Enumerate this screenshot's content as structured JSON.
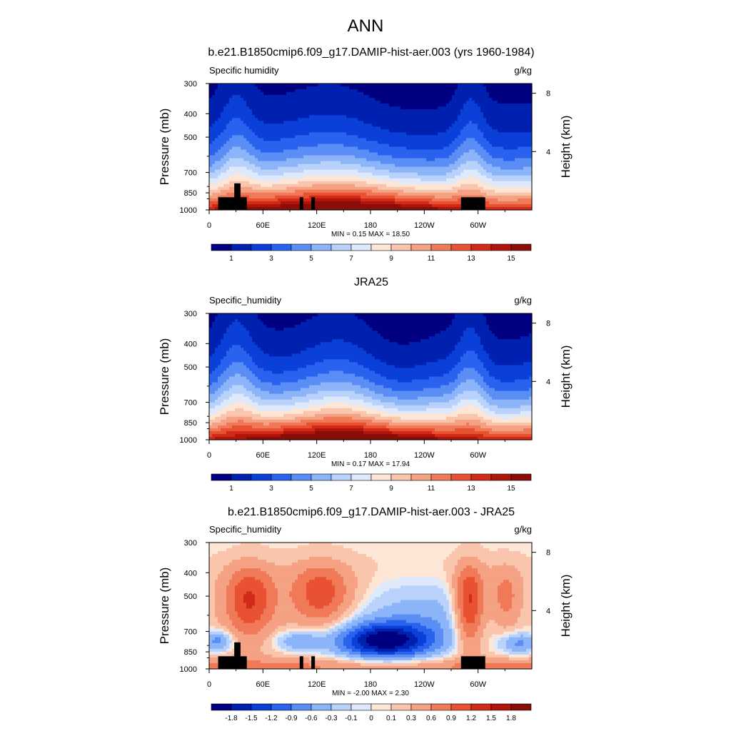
{
  "figure": {
    "title": "ANN"
  },
  "colors": {
    "abs_levels": [
      "#000080",
      "#0020b0",
      "#0a3fd8",
      "#2a62f0",
      "#5a8ef5",
      "#8cb4f8",
      "#b8d2fb",
      "#dfe9fc",
      "#fde6d6",
      "#f9c6ad",
      "#f5a183",
      "#f07a58",
      "#e85233",
      "#d22a18",
      "#b0150c",
      "#8a0d08"
    ],
    "diff_levels": [
      "#000080",
      "#0020b0",
      "#0a3fd8",
      "#2a62f0",
      "#5a8ef5",
      "#8cb4f8",
      "#b8d2fb",
      "#dfe9fc",
      "#fde6d6",
      "#f9c6ad",
      "#f5a183",
      "#f07a58",
      "#e85233",
      "#d22a18",
      "#b0150c",
      "#8a0d08"
    ],
    "land_mask": "#000000"
  },
  "chart_data": [
    {
      "type": "heatmap",
      "title": "b.e21.B1850cmip6.f09_g17.DAMIP-hist-aer.003 (yrs 1960-1984)",
      "variable": "Specific humidity",
      "units": "g/kg",
      "ylabel": "Pressure (mb)",
      "ylabel_right": "Height (km)",
      "x_ticks": [
        "0",
        "60E",
        "120E",
        "180",
        "120W",
        "60W"
      ],
      "y_ticks": [
        "300",
        "400",
        "500",
        "700",
        "850",
        "1000"
      ],
      "y_ticks_right": [
        "8",
        "4"
      ],
      "stats": "MIN =   0.15  MAX =  18.50",
      "colorbar_labels": [
        "1",
        "3",
        "5",
        "7",
        "9",
        "11",
        "13",
        "15"
      ],
      "min": 0.15,
      "max": 18.5
    },
    {
      "type": "heatmap",
      "title": "JRA25",
      "variable": "Specific_humidity",
      "units": "g/kg",
      "ylabel": "Pressure (mb)",
      "ylabel_right": "Height (km)",
      "x_ticks": [
        "0",
        "60E",
        "120E",
        "180",
        "120W",
        "60W"
      ],
      "y_ticks": [
        "300",
        "400",
        "500",
        "700",
        "850",
        "1000"
      ],
      "y_ticks_right": [
        "8",
        "4"
      ],
      "stats": "MIN =   0.17  MAX =  17.94",
      "colorbar_labels": [
        "1",
        "3",
        "5",
        "7",
        "9",
        "11",
        "13",
        "15"
      ],
      "min": 0.17,
      "max": 17.94
    },
    {
      "type": "heatmap",
      "title": "b.e21.B1850cmip6.f09_g17.DAMIP-hist-aer.003 - JRA25",
      "variable": "Specific_humidity",
      "units": "g/kg",
      "ylabel": "Pressure (mb)",
      "ylabel_right": "Height (km)",
      "x_ticks": [
        "0",
        "60E",
        "120E",
        "180",
        "120W",
        "60W"
      ],
      "y_ticks": [
        "300",
        "400",
        "500",
        "700",
        "850",
        "1000"
      ],
      "y_ticks_right": [
        "8",
        "4"
      ],
      "stats": "MIN =  -2.00  MAX =   2.30",
      "colorbar_labels": [
        "-1.8",
        "-1.5",
        "-1.2",
        "-0.9",
        "-0.6",
        "-0.3",
        "-0.1",
        "0",
        "0.1",
        "0.3",
        "0.6",
        "0.9",
        "1.2",
        "1.5",
        "1.8"
      ],
      "min": -2.0,
      "max": 2.3
    }
  ]
}
